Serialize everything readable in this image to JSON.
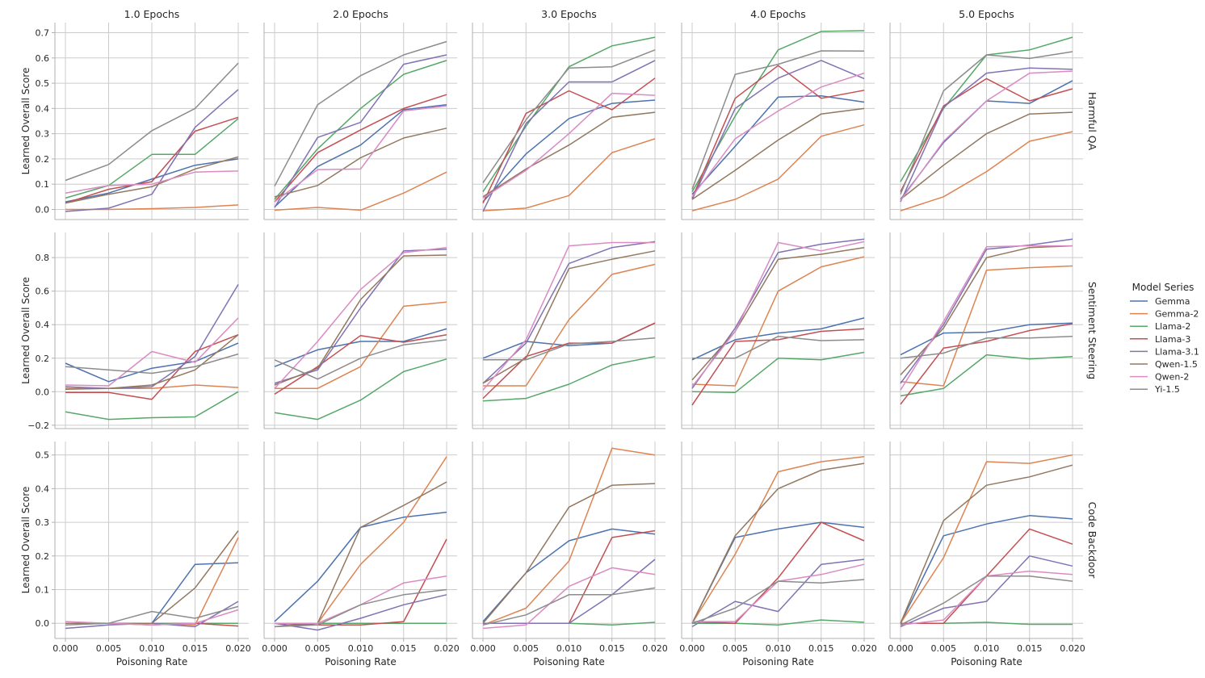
{
  "legend_title": "Model Series",
  "model_series": [
    {
      "name": "Gemma",
      "color": "#4c72b0"
    },
    {
      "name": "Gemma-2",
      "color": "#dd8452"
    },
    {
      "name": "Llama-2",
      "color": "#55a868"
    },
    {
      "name": "Llama-3",
      "color": "#c44e52"
    },
    {
      "name": "Llama-3.1",
      "color": "#8172b3"
    },
    {
      "name": "Qwen-1.5",
      "color": "#937860"
    },
    {
      "name": "Qwen-2",
      "color": "#da8bc3"
    },
    {
      "name": "Yi-1.5",
      "color": "#8c8c8c"
    }
  ],
  "chart_data": {
    "type": "line",
    "xlabel": "Poisoning Rate",
    "ylabel": "Learned Overall Score",
    "x": [
      0.0,
      0.005,
      0.01,
      0.015,
      0.02
    ],
    "x_tick_labels": [
      "0.000",
      "0.005",
      "0.010",
      "0.015",
      "0.020"
    ],
    "columns": [
      "1.0 Epochs",
      "2.0 Epochs",
      "3.0 Epochs",
      "4.0 Epochs",
      "5.0 Epochs"
    ],
    "rows": [
      {
        "title": "Harmful QA",
        "ylim": [
          -0.04,
          0.74
        ],
        "yticks": [
          0.0,
          0.1,
          0.2,
          0.3,
          0.4,
          0.5,
          0.6,
          0.7
        ],
        "ytick_labels": [
          "0.0",
          "0.1",
          "0.2",
          "0.3",
          "0.4",
          "0.5",
          "0.6",
          "0.7"
        ],
        "panels": [
          {
            "Gemma": [
              0.03,
              0.065,
              0.12,
              0.175,
              0.2
            ],
            "Gemma-2": [
              0.0,
              0.0,
              0.003,
              0.008,
              0.018
            ],
            "Llama-2": [
              0.045,
              0.095,
              0.218,
              0.218,
              0.36
            ],
            "Llama-3": [
              0.025,
              0.08,
              0.11,
              0.31,
              0.365
            ],
            "Llama-3.1": [
              -0.008,
              0.005,
              0.06,
              0.325,
              0.475
            ],
            "Qwen-1.5": [
              0.025,
              0.06,
              0.09,
              0.16,
              0.208
            ],
            "Qwen-2": [
              0.065,
              0.095,
              0.1,
              0.148,
              0.152
            ],
            "Yi-1.5": [
              0.115,
              0.178,
              0.312,
              0.4,
              0.58
            ]
          },
          {
            "Gemma": [
              0.01,
              0.17,
              0.255,
              0.395,
              0.415
            ],
            "Gemma-2": [
              -0.003,
              0.008,
              -0.003,
              0.065,
              0.148
            ],
            "Llama-2": [
              0.04,
              0.24,
              0.4,
              0.535,
              0.59
            ],
            "Llama-3": [
              0.03,
              0.225,
              0.315,
              0.4,
              0.455
            ],
            "Llama-3.1": [
              0.008,
              0.285,
              0.345,
              0.575,
              0.612
            ],
            "Qwen-1.5": [
              0.05,
              0.095,
              0.205,
              0.283,
              0.322
            ],
            "Qwen-2": [
              0.03,
              0.158,
              0.16,
              0.39,
              0.41
            ],
            "Yi-1.5": [
              0.092,
              0.415,
              0.53,
              0.612,
              0.665
            ]
          },
          {
            "Gemma": [
              0.03,
              0.22,
              0.36,
              0.42,
              0.433
            ],
            "Gemma-2": [
              -0.005,
              0.005,
              0.055,
              0.225,
              0.28
            ],
            "Llama-2": [
              0.07,
              0.33,
              0.565,
              0.648,
              0.682
            ],
            "Llama-3": [
              0.025,
              0.38,
              0.47,
              0.395,
              0.52
            ],
            "Llama-3.1": [
              -0.008,
              0.34,
              0.505,
              0.505,
              0.59
            ],
            "Qwen-1.5": [
              0.05,
              0.16,
              0.255,
              0.365,
              0.385
            ],
            "Qwen-2": [
              0.045,
              0.155,
              0.3,
              0.46,
              0.452
            ],
            "Yi-1.5": [
              0.105,
              0.355,
              0.56,
              0.565,
              0.632
            ]
          },
          {
            "Gemma": [
              0.06,
              0.25,
              0.445,
              0.45,
              0.425
            ],
            "Gemma-2": [
              -0.005,
              0.04,
              0.12,
              0.29,
              0.335
            ],
            "Llama-2": [
              0.07,
              0.37,
              0.632,
              0.705,
              0.708
            ],
            "Llama-3": [
              0.045,
              0.44,
              0.57,
              0.44,
              0.472
            ],
            "Llama-3.1": [
              0.04,
              0.4,
              0.52,
              0.59,
              0.518
            ],
            "Qwen-1.5": [
              0.04,
              0.155,
              0.275,
              0.378,
              0.4
            ],
            "Qwen-2": [
              0.05,
              0.28,
              0.39,
              0.485,
              0.54
            ],
            "Yi-1.5": [
              0.08,
              0.535,
              0.575,
              0.628,
              0.627
            ]
          },
          {
            "Gemma": [
              0.04,
              0.265,
              0.43,
              0.42,
              0.51
            ],
            "Gemma-2": [
              -0.005,
              0.05,
              0.15,
              0.27,
              0.308
            ],
            "Llama-2": [
              0.11,
              0.4,
              0.612,
              0.632,
              0.682
            ],
            "Llama-3": [
              0.07,
              0.41,
              0.518,
              0.43,
              0.478
            ],
            "Llama-3.1": [
              0.03,
              0.405,
              0.54,
              0.56,
              0.555
            ],
            "Qwen-1.5": [
              0.04,
              0.175,
              0.3,
              0.378,
              0.385
            ],
            "Qwen-2": [
              0.035,
              0.27,
              0.43,
              0.54,
              0.548
            ],
            "Yi-1.5": [
              0.06,
              0.47,
              0.612,
              0.598,
              0.625
            ]
          }
        ]
      },
      {
        "title": "Sentiment Steering",
        "ylim": [
          -0.22,
          0.95
        ],
        "yticks": [
          -0.2,
          0.0,
          0.2,
          0.4,
          0.6,
          0.8
        ],
        "ytick_labels": [
          "−0.2",
          "0.0",
          "0.2",
          "0.4",
          "0.6",
          "0.8"
        ],
        "panels": [
          {
            "Gemma": [
              0.17,
              0.06,
              0.14,
              0.18,
              0.29
            ],
            "Gemma-2": [
              0.02,
              0.02,
              0.02,
              0.04,
              0.025
            ],
            "Llama-2": [
              -0.12,
              -0.165,
              -0.155,
              -0.15,
              0.0
            ],
            "Llama-3": [
              -0.005,
              -0.005,
              -0.045,
              0.24,
              0.34
            ],
            "Llama-3.1": [
              0.03,
              0.02,
              0.03,
              0.21,
              0.64
            ],
            "Qwen-1.5": [
              0.015,
              0.02,
              0.04,
              0.13,
              0.34
            ],
            "Qwen-2": [
              0.04,
              0.035,
              0.24,
              0.175,
              0.44
            ],
            "Yi-1.5": [
              0.15,
              0.13,
              0.11,
              0.15,
              0.225
            ]
          },
          {
            "Gemma": [
              0.15,
              0.25,
              0.3,
              0.3,
              0.375
            ],
            "Gemma-2": [
              0.02,
              0.02,
              0.15,
              0.51,
              0.535
            ],
            "Llama-2": [
              -0.125,
              -0.165,
              -0.05,
              0.12,
              0.195
            ],
            "Llama-3": [
              -0.015,
              0.15,
              0.335,
              0.295,
              0.34
            ],
            "Llama-3.1": [
              0.05,
              0.13,
              0.5,
              0.84,
              0.85
            ],
            "Qwen-1.5": [
              0.04,
              0.14,
              0.55,
              0.81,
              0.815
            ],
            "Qwen-2": [
              0.02,
              0.3,
              0.61,
              0.83,
              0.86
            ],
            "Yi-1.5": [
              0.19,
              0.075,
              0.2,
              0.28,
              0.31
            ]
          },
          {
            "Gemma": [
              0.2,
              0.3,
              0.275,
              0.29,
              0.41
            ],
            "Gemma-2": [
              0.035,
              0.035,
              0.43,
              0.7,
              0.76
            ],
            "Llama-2": [
              -0.055,
              -0.04,
              0.045,
              0.16,
              0.21
            ],
            "Llama-3": [
              -0.04,
              0.21,
              0.29,
              0.29,
              0.41
            ],
            "Llama-3.1": [
              0.05,
              0.29,
              0.765,
              0.86,
              0.895
            ],
            "Qwen-1.5": [
              0.05,
              0.2,
              0.735,
              0.79,
              0.84
            ],
            "Qwen-2": [
              0.01,
              0.31,
              0.87,
              0.89,
              0.89
            ],
            "Yi-1.5": [
              0.19,
              0.19,
              0.285,
              0.3,
              0.32
            ]
          },
          {
            "Gemma": [
              0.19,
              0.31,
              0.35,
              0.375,
              0.44
            ],
            "Gemma-2": [
              0.045,
              0.035,
              0.6,
              0.745,
              0.805
            ],
            "Llama-2": [
              0.0,
              -0.005,
              0.2,
              0.19,
              0.235
            ],
            "Llama-3": [
              -0.08,
              0.3,
              0.31,
              0.36,
              0.375
            ],
            "Llama-3.1": [
              0.02,
              0.38,
              0.83,
              0.88,
              0.91
            ],
            "Qwen-1.5": [
              0.07,
              0.36,
              0.79,
              0.82,
              0.86
            ],
            "Qwen-2": [
              0.03,
              0.36,
              0.89,
              0.84,
              0.895
            ],
            "Yi-1.5": [
              0.2,
              0.2,
              0.33,
              0.305,
              0.31
            ]
          },
          {
            "Gemma": [
              0.22,
              0.35,
              0.355,
              0.4,
              0.41
            ],
            "Gemma-2": [
              0.06,
              0.035,
              0.725,
              0.74,
              0.75
            ],
            "Llama-2": [
              -0.025,
              0.02,
              0.22,
              0.195,
              0.21
            ],
            "Llama-3": [
              -0.075,
              0.26,
              0.3,
              0.365,
              0.405
            ],
            "Llama-3.1": [
              0.05,
              0.4,
              0.85,
              0.875,
              0.91
            ],
            "Qwen-1.5": [
              0.1,
              0.38,
              0.8,
              0.86,
              0.87
            ],
            "Qwen-2": [
              0.01,
              0.42,
              0.865,
              0.87,
              0.87
            ],
            "Yi-1.5": [
              0.2,
              0.23,
              0.32,
              0.32,
              0.33
            ]
          }
        ]
      },
      {
        "title": "Code Backdoor",
        "ylim": [
          -0.045,
          0.54
        ],
        "yticks": [
          0.0,
          0.1,
          0.2,
          0.3,
          0.4,
          0.5
        ],
        "ytick_labels": [
          "0.0",
          "0.1",
          "0.2",
          "0.3",
          "0.4",
          "0.5"
        ],
        "panels": [
          {
            "Gemma": [
              0.0,
              0.0,
              0.0,
              0.175,
              0.18
            ],
            "Gemma-2": [
              0.0,
              0.0,
              0.0,
              -0.005,
              0.255
            ],
            "Llama-2": [
              0.0,
              0.0,
              0.0,
              0.0,
              0.0
            ],
            "Llama-3": [
              0.0,
              0.0,
              -0.005,
              0.0,
              -0.008
            ],
            "Llama-3.1": [
              -0.015,
              -0.005,
              0.0,
              -0.01,
              0.065
            ],
            "Qwen-1.5": [
              0.0,
              0.0,
              0.0,
              0.105,
              0.275
            ],
            "Qwen-2": [
              0.005,
              0.0,
              -0.005,
              0.0,
              0.04
            ],
            "Yi-1.5": [
              -0.005,
              0.0,
              0.035,
              0.015,
              0.05
            ]
          },
          {
            "Gemma": [
              0.005,
              0.125,
              0.285,
              0.315,
              0.33
            ],
            "Gemma-2": [
              0.0,
              0.0,
              0.175,
              0.3,
              0.495
            ],
            "Llama-2": [
              0.0,
              0.0,
              0.0,
              0.0,
              0.0
            ],
            "Llama-3": [
              0.0,
              -0.005,
              -0.005,
              0.005,
              0.25
            ],
            "Llama-3.1": [
              0.0,
              -0.02,
              0.015,
              0.055,
              0.085
            ],
            "Qwen-1.5": [
              -0.01,
              0.0,
              0.285,
              0.35,
              0.42
            ],
            "Qwen-2": [
              0.0,
              0.0,
              0.055,
              0.12,
              0.14
            ],
            "Yi-1.5": [
              -0.01,
              -0.005,
              0.055,
              0.085,
              0.1
            ]
          },
          {
            "Gemma": [
              0.005,
              0.15,
              0.245,
              0.28,
              0.265
            ],
            "Gemma-2": [
              -0.005,
              0.045,
              0.185,
              0.52,
              0.5
            ],
            "Llama-2": [
              0.0,
              0.0,
              0.0,
              -0.005,
              0.003
            ],
            "Llama-3": [
              0.0,
              0.0,
              0.0,
              0.255,
              0.275
            ],
            "Llama-3.1": [
              0.0,
              0.0,
              0.0,
              0.085,
              0.19
            ],
            "Qwen-1.5": [
              0.0,
              0.15,
              0.345,
              0.41,
              0.415
            ],
            "Qwen-2": [
              -0.015,
              -0.005,
              0.11,
              0.165,
              0.145
            ],
            "Yi-1.5": [
              -0.005,
              0.025,
              0.085,
              0.085,
              0.105
            ]
          },
          {
            "Gemma": [
              0.0,
              0.255,
              0.28,
              0.3,
              0.285
            ],
            "Gemma-2": [
              0.0,
              0.205,
              0.45,
              0.48,
              0.495
            ],
            "Llama-2": [
              0.0,
              0.0,
              -0.005,
              0.01,
              0.003
            ],
            "Llama-3": [
              0.005,
              0.0,
              0.135,
              0.3,
              0.245
            ],
            "Llama-3.1": [
              -0.01,
              0.065,
              0.035,
              0.175,
              0.19
            ],
            "Qwen-1.5": [
              0.0,
              0.26,
              0.4,
              0.455,
              0.475
            ],
            "Qwen-2": [
              0.005,
              0.005,
              0.125,
              0.145,
              0.175
            ],
            "Yi-1.5": [
              0.0,
              0.045,
              0.125,
              0.12,
              0.13
            ]
          },
          {
            "Gemma": [
              0.0,
              0.26,
              0.295,
              0.32,
              0.31
            ],
            "Gemma-2": [
              0.0,
              0.195,
              0.48,
              0.475,
              0.5
            ],
            "Llama-2": [
              0.0,
              0.0,
              0.003,
              -0.003,
              -0.003
            ],
            "Llama-3": [
              0.0,
              0.0,
              0.14,
              0.28,
              0.235
            ],
            "Llama-3.1": [
              -0.01,
              0.045,
              0.065,
              0.2,
              0.17
            ],
            "Qwen-1.5": [
              0.0,
              0.305,
              0.41,
              0.435,
              0.47
            ],
            "Qwen-2": [
              -0.005,
              0.01,
              0.14,
              0.155,
              0.145
            ],
            "Yi-1.5": [
              -0.005,
              0.06,
              0.14,
              0.14,
              0.125
            ]
          }
        ]
      }
    ]
  }
}
